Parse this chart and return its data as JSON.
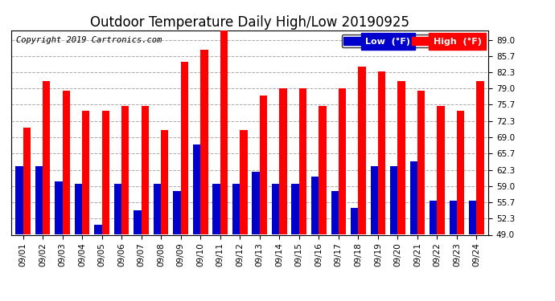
{
  "title": "Outdoor Temperature Daily High/Low 20190925",
  "copyright": "Copyright 2019 Cartronics.com",
  "legend_low": "Low  (°F)",
  "legend_high": "High  (°F)",
  "dates": [
    "09/01",
    "09/02",
    "09/03",
    "09/04",
    "09/05",
    "09/06",
    "09/07",
    "09/08",
    "09/09",
    "09/10",
    "09/11",
    "09/12",
    "09/13",
    "09/14",
    "09/15",
    "09/16",
    "09/17",
    "09/18",
    "09/19",
    "09/20",
    "09/21",
    "09/22",
    "09/23",
    "09/24"
  ],
  "high": [
    71.0,
    80.5,
    78.5,
    74.5,
    74.5,
    75.5,
    75.5,
    70.5,
    84.5,
    87.0,
    91.0,
    70.5,
    77.5,
    79.0,
    79.0,
    75.5,
    79.0,
    83.5,
    82.5,
    80.5,
    78.5,
    75.5,
    74.5,
    80.5
  ],
  "low": [
    63.0,
    63.0,
    60.0,
    59.5,
    51.0,
    59.5,
    54.0,
    59.5,
    58.0,
    67.5,
    59.5,
    59.5,
    62.0,
    59.5,
    59.5,
    61.0,
    58.0,
    54.5,
    63.0,
    63.0,
    64.0,
    56.0,
    56.0,
    56.0
  ],
  "ylim_min": 49.0,
  "ylim_max": 91.0,
  "yticks": [
    49.0,
    52.3,
    55.7,
    59.0,
    62.3,
    65.7,
    69.0,
    72.3,
    75.7,
    79.0,
    82.3,
    85.7,
    89.0
  ],
  "bar_color_low": "#0000cc",
  "bar_color_high": "#ff0000",
  "bg_color": "#ffffff",
  "grid_color": "#aaaaaa",
  "title_fontsize": 12,
  "copyright_fontsize": 7.5,
  "bar_width": 0.38,
  "legend_bg_low": "#0000cc",
  "legend_bg_high": "#ff0000",
  "legend_text_color": "#ffffff"
}
